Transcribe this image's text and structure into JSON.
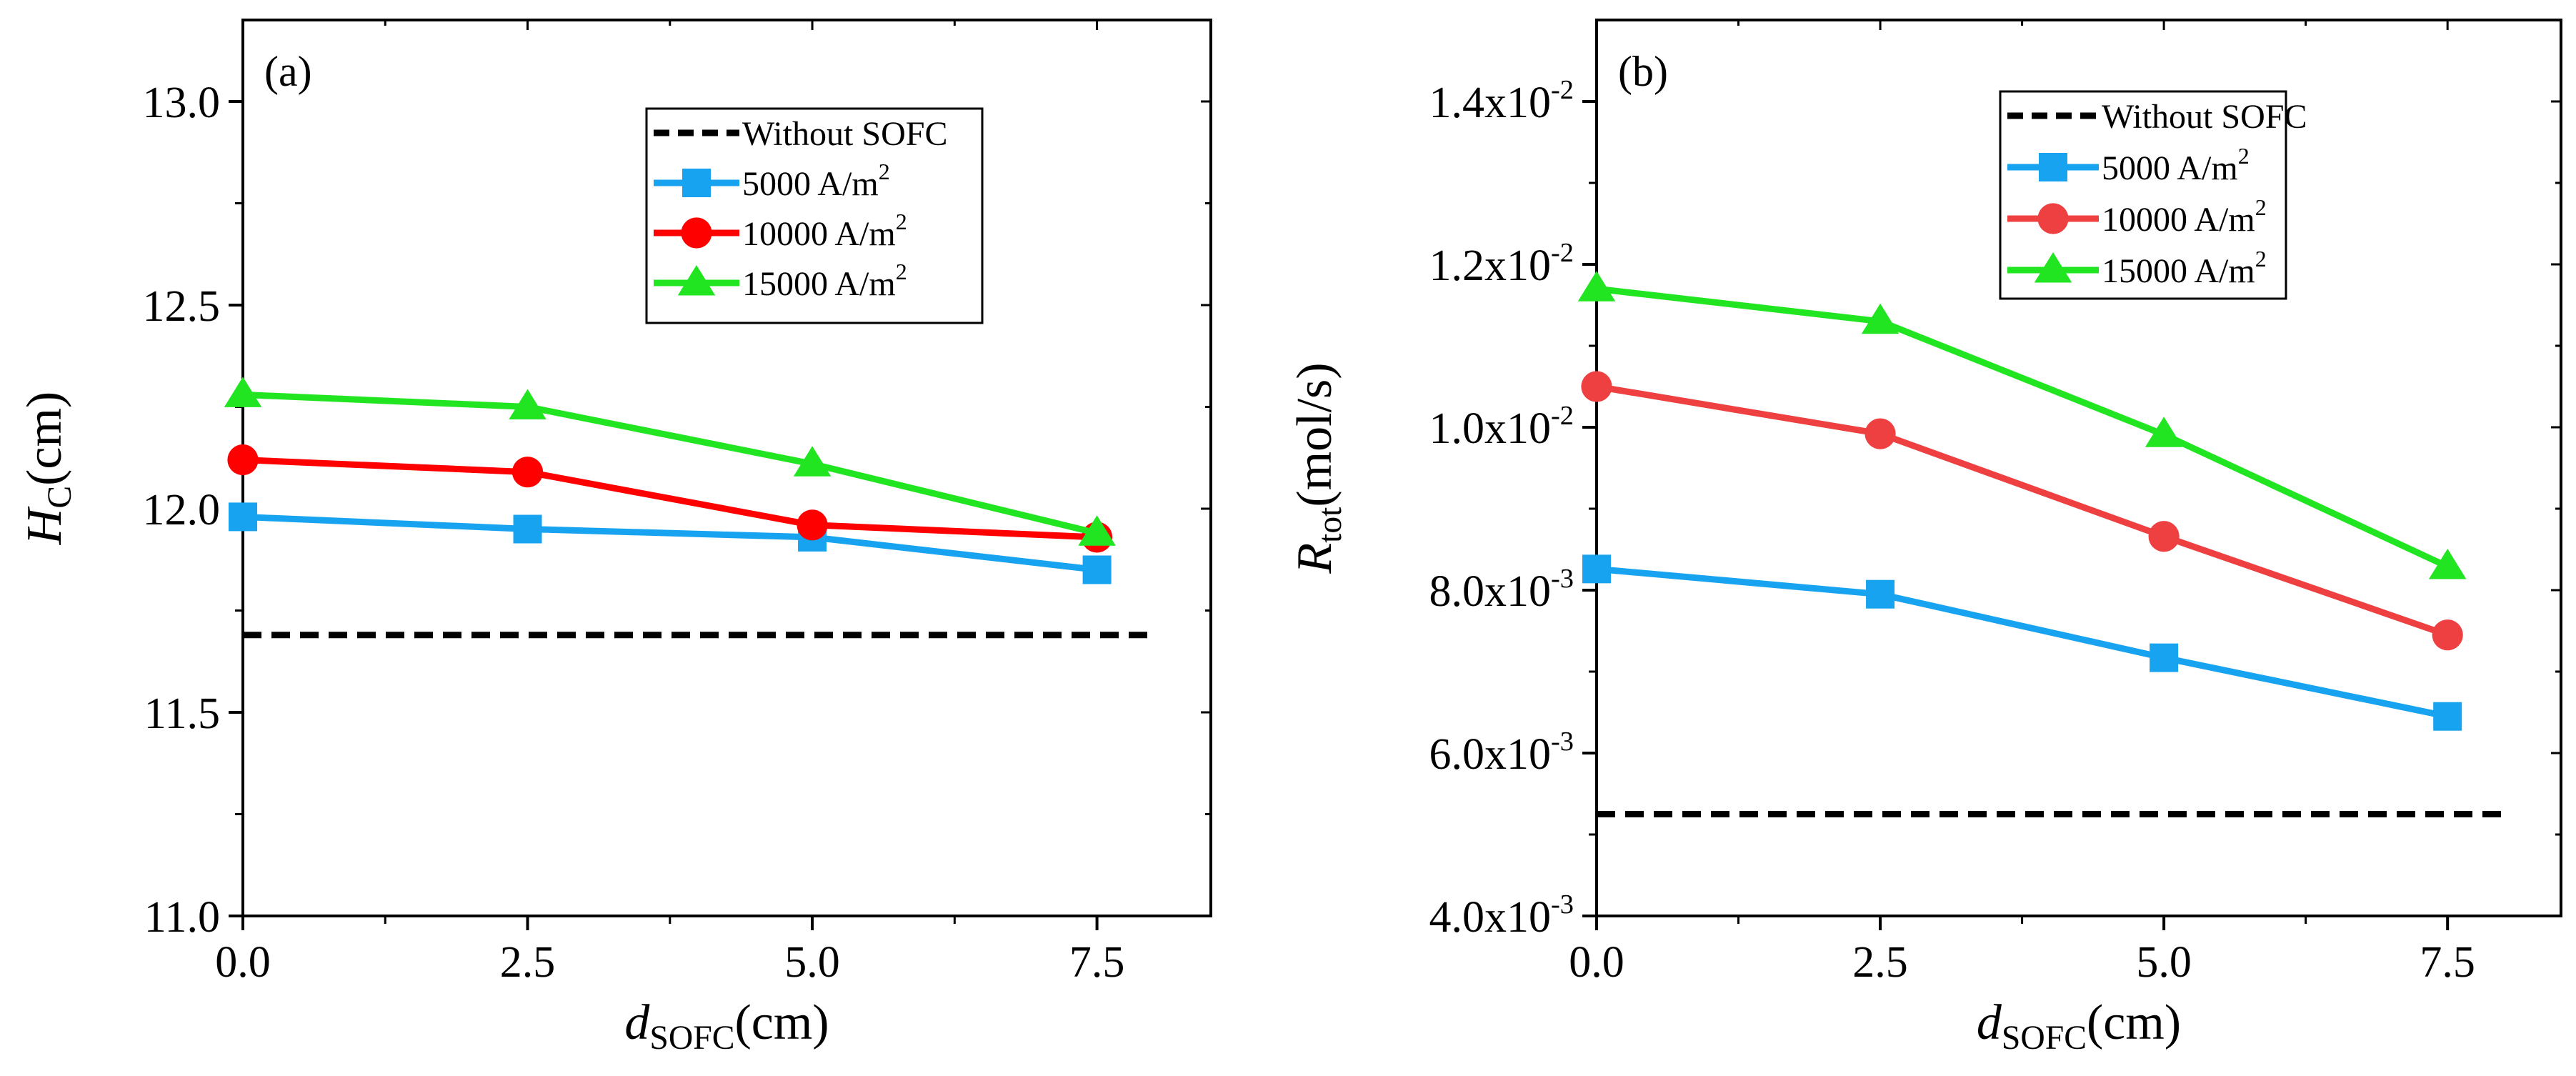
{
  "chart_data": [
    {
      "type": "line",
      "panel_label": "(a)",
      "xlabel": {
        "symbol": "d",
        "sub": "SOFC",
        "unit": "(cm)"
      },
      "ylabel": {
        "symbol": "H",
        "sub": "C",
        "unit": "(cm)"
      },
      "xlim": [
        0,
        8.5
      ],
      "ylim": [
        11.0,
        13.2
      ],
      "x_ticks": [
        0,
        2.5,
        5,
        7.5
      ],
      "x_tick_labels": [
        "0.0",
        "2.5",
        "5.0",
        "7.5"
      ],
      "y_ticks": [
        11.0,
        11.5,
        12.0,
        12.5,
        13.0
      ],
      "y_tick_labels": [
        "11.0",
        "11.5",
        "12.0",
        "12.5",
        "13.0"
      ],
      "grid": false,
      "legend_position": "top-right",
      "series": [
        {
          "name": "Without SOFC",
          "legend_label": "Without SOFC",
          "legend_unit_base": "",
          "legend_unit_exp": "",
          "style": "dashed",
          "color": "#000000",
          "marker": "none",
          "x": [
            0,
            8
          ],
          "values": [
            11.69,
            11.69
          ]
        },
        {
          "name": "5000 A/m2",
          "legend_label": "5000   A/m",
          "legend_unit_base": "",
          "legend_unit_exp": "2",
          "style": "solid",
          "color": "#18A3F0",
          "marker": "square",
          "x": [
            0,
            2.5,
            5,
            7.5
          ],
          "values": [
            11.98,
            11.95,
            11.93,
            11.85
          ]
        },
        {
          "name": "10000 A/m2",
          "legend_label": "10000 A/m",
          "legend_unit_base": "",
          "legend_unit_exp": "2",
          "style": "solid",
          "color": "#FF0000",
          "marker": "circle",
          "x": [
            0,
            2.5,
            5,
            7.5
          ],
          "values": [
            12.12,
            12.09,
            11.96,
            11.93
          ]
        },
        {
          "name": "15000 A/m2",
          "legend_label": "15000 A/m",
          "legend_unit_base": "",
          "legend_unit_exp": "2",
          "style": "solid",
          "color": "#22E522",
          "marker": "triangle",
          "x": [
            0,
            2.5,
            5,
            7.5
          ],
          "values": [
            12.28,
            12.25,
            12.11,
            11.94
          ]
        }
      ]
    },
    {
      "type": "line",
      "panel_label": "(b)",
      "xlabel": {
        "symbol": "d",
        "sub": "SOFC",
        "unit": "(cm)"
      },
      "ylabel": {
        "symbol": "R",
        "sub": "tot",
        "unit": "(mol/s)"
      },
      "xlim": [
        0,
        8.5
      ],
      "ylim": [
        0.004,
        0.015
      ],
      "x_ticks": [
        0,
        2.5,
        5,
        7.5
      ],
      "x_tick_labels": [
        "0.0",
        "2.5",
        "5.0",
        "7.5"
      ],
      "y_ticks": [
        0.004,
        0.006,
        0.008,
        0.01,
        0.012,
        0.014
      ],
      "y_tick_labels": [
        {
          "mant": "4.0x10",
          "exp": "-3"
        },
        {
          "mant": "6.0x10",
          "exp": "-3"
        },
        {
          "mant": "8.0x10",
          "exp": "-3"
        },
        {
          "mant": "1.0x10",
          "exp": "-2"
        },
        {
          "mant": "1.2x10",
          "exp": "-2"
        },
        {
          "mant": "1.4x10",
          "exp": "-2"
        }
      ],
      "grid": false,
      "legend_position": "top-right",
      "series": [
        {
          "name": "Without SOFC",
          "legend_label": "Without SOFC",
          "legend_unit_exp": "",
          "style": "dashed",
          "color": "#000000",
          "marker": "none",
          "x": [
            0,
            8
          ],
          "values": [
            0.00525,
            0.00525
          ]
        },
        {
          "name": "5000 A/m2",
          "legend_label": "5000   A/m",
          "legend_unit_exp": "2",
          "style": "solid",
          "color": "#18A3F0",
          "marker": "square",
          "x": [
            0,
            2.5,
            5,
            7.5
          ],
          "values": [
            0.00826,
            0.00795,
            0.00717,
            0.00645
          ]
        },
        {
          "name": "10000 A/m2",
          "legend_label": "10000 A/m",
          "legend_unit_exp": "2",
          "style": "solid",
          "color": "#EE4040",
          "marker": "circle",
          "x": [
            0,
            2.5,
            5,
            7.5
          ],
          "values": [
            0.0105,
            0.00992,
            0.00866,
            0.00745
          ]
        },
        {
          "name": "15000 A/m2",
          "legend_label": "15000 A/m",
          "legend_unit_exp": "2",
          "style": "solid",
          "color": "#22E522",
          "marker": "triangle",
          "x": [
            0,
            2.5,
            5,
            7.5
          ],
          "values": [
            0.0117,
            0.0113,
            0.00991,
            0.00829
          ]
        }
      ]
    }
  ]
}
